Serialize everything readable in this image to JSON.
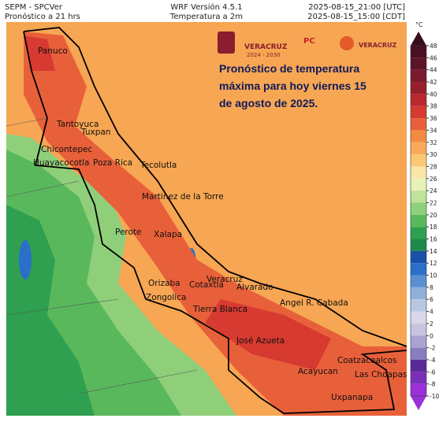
{
  "header": {
    "left": [
      "SEPM - SPCVer",
      "Pronóstico a 21 hrs"
    ],
    "center": [
      "WRF Versión 4.5.1",
      "Temperatura a 2m"
    ],
    "right": [
      "2025-08-15_21:00 [UTC]",
      "2025-08-15_15:00 [CDT]"
    ]
  },
  "annotation": [
    "Pronóstico de temperatura",
    "máxima para hoy viernes 15",
    "de agosto de 2025."
  ],
  "logos": {
    "state": "VERACRUZ",
    "period": "2024 - 2030",
    "pc": "PC",
    "pc_state": "VERACRUZ"
  },
  "cities": [
    "Panuco",
    "Tantoyuca",
    "Chicontepec",
    "Tuxpan",
    "Huayacocotla",
    "Poza Rica",
    "Tecolutla",
    "Martinez de la Torre",
    "Perote",
    "Xalapa",
    "Veracruz",
    "Orizaba",
    "Cotaxtla",
    "Alvarado",
    "Zongolica",
    "Tierra Blanca",
    "Angel R. Cabada",
    "José Azueta",
    "Coatzacoalcos",
    "Acayucan",
    "Las Choapas",
    "Uxpanapa"
  ],
  "colorbar": {
    "unit": "°C",
    "lim": [
      -10,
      48
    ],
    "ticks": [
      48,
      46,
      44,
      42,
      40,
      38,
      36,
      34,
      32,
      30,
      28,
      26,
      24,
      22,
      20,
      18,
      16,
      14,
      12,
      10,
      8,
      6,
      4,
      2,
      0,
      -2,
      -4,
      -6,
      -8,
      -10
    ],
    "colors": [
      "#3a0c20",
      "#4a1024",
      "#5e1428",
      "#7a1a2c",
      "#95202c",
      "#b8282e",
      "#d63a30",
      "#e8603a",
      "#f38a42",
      "#f9a95a",
      "#fbc878",
      "#fbe6a8",
      "#e8f2b8",
      "#bfe39a",
      "#8fd07a",
      "#5ab85c",
      "#2ea04f",
      "#1e8a4a",
      "#1a50a8",
      "#2a6fc8",
      "#5a8fd0",
      "#8fb0d8",
      "#b8c8e0",
      "#d8d8e8",
      "#c8c4e0",
      "#a9a3d0",
      "#8a7ec0",
      "#5a2a9a",
      "#7a2fb8",
      "#9b30d9"
    ]
  }
}
